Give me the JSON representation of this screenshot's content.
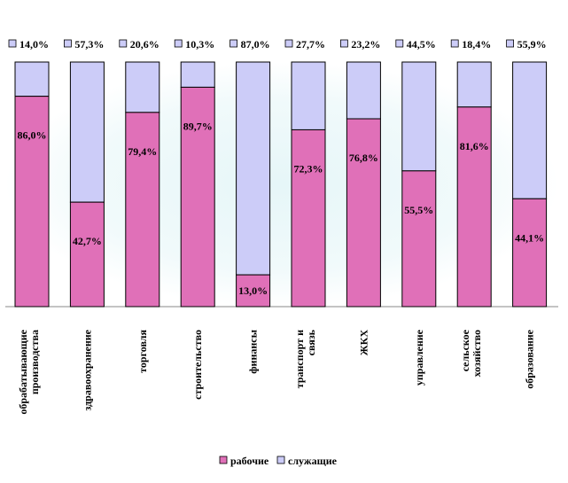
{
  "chart_data": {
    "type": "bar",
    "stacked": true,
    "percent_stacked": true,
    "categories": [
      "обрабатывающие производства",
      "здравоохранение",
      "торговля",
      "строительство",
      "финансы",
      "транспорт и связь",
      "ЖКХ",
      "управление",
      "сельское хозяйство",
      "образование"
    ],
    "series": [
      {
        "name": "рабочие",
        "color": "#E070B8",
        "values": [
          86.0,
          42.7,
          79.4,
          89.7,
          13.0,
          72.3,
          76.8,
          55.5,
          81.6,
          44.1
        ],
        "labels": [
          "86,0%",
          "42,7%",
          "79,4%",
          "89,7%",
          "13,0%",
          "72,3%",
          "76,8%",
          "55,5%",
          "81,6%",
          "44,1%"
        ]
      },
      {
        "name": "служащие",
        "color": "#CCCCF8",
        "values": [
          14.0,
          57.3,
          20.6,
          10.3,
          87.0,
          27.7,
          23.2,
          44.5,
          18.4,
          55.9
        ],
        "labels": [
          "14,0%",
          "57,3%",
          "20,6%",
          "10,3%",
          "87,0%",
          "27,7%",
          "23,2%",
          "44,5%",
          "18,4%",
          "55,9%"
        ]
      }
    ],
    "ylim": [
      0,
      100
    ],
    "legend": "bottom",
    "grid": false,
    "title": "",
    "xlabel": "",
    "ylabel": ""
  }
}
